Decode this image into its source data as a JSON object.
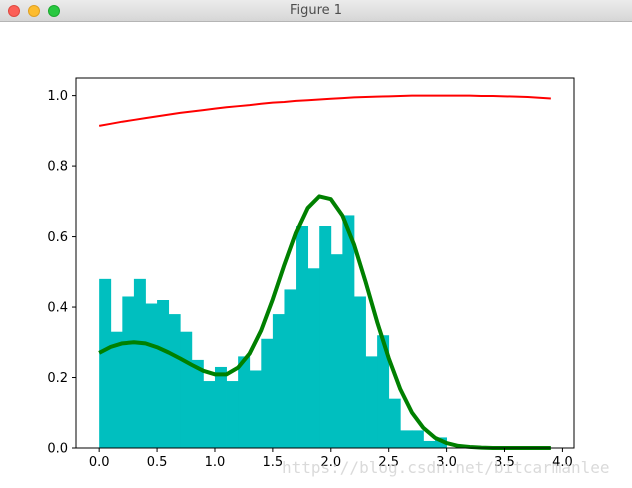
{
  "window": {
    "title": "Figure 1"
  },
  "watermark": "https://blog.csdn.net/bitcarmanlee",
  "colors": {
    "bars": "#00bfbf",
    "red_line": "#ff0000",
    "green_line": "#008000"
  },
  "chart_data": {
    "type": "bar",
    "title": "",
    "xlabel": "",
    "ylabel": "",
    "xlim": [
      -0.2,
      4.1
    ],
    "ylim": [
      0.0,
      1.05
    ],
    "grid": false,
    "x_ticks": [
      0.0,
      0.5,
      1.0,
      1.5,
      2.0,
      2.5,
      3.0,
      3.5,
      4.0
    ],
    "x_tick_labels": [
      "0.0",
      "0.5",
      "1.0",
      "1.5",
      "2.0",
      "2.5",
      "3.0",
      "3.5",
      "4.0"
    ],
    "y_ticks": [
      0.0,
      0.2,
      0.4,
      0.6,
      0.8,
      1.0
    ],
    "y_tick_labels": [
      "0.0",
      "0.2",
      "0.4",
      "0.6",
      "0.8",
      "1.0"
    ],
    "histogram": {
      "bin_width": 0.1,
      "bin_starts": [
        0.0,
        0.1,
        0.2,
        0.3,
        0.4,
        0.5,
        0.6,
        0.7,
        0.8,
        0.9,
        1.0,
        1.1,
        1.2,
        1.3,
        1.4,
        1.5,
        1.6,
        1.7,
        1.8,
        1.9,
        2.0,
        2.1,
        2.2,
        2.3,
        2.4,
        2.5,
        2.6,
        2.7,
        2.8,
        2.9
      ],
      "values": [
        0.48,
        0.33,
        0.43,
        0.48,
        0.41,
        0.42,
        0.38,
        0.33,
        0.25,
        0.19,
        0.23,
        0.19,
        0.26,
        0.22,
        0.31,
        0.38,
        0.45,
        0.63,
        0.51,
        0.63,
        0.55,
        0.66,
        0.43,
        0.26,
        0.32,
        0.14,
        0.05,
        0.05,
        0.02,
        0.03
      ]
    },
    "series": [
      {
        "kind": "line",
        "x": [
          0.0,
          0.1,
          0.2,
          0.3,
          0.4,
          0.5,
          0.6,
          0.7,
          0.8,
          0.9,
          1.0,
          1.1,
          1.2,
          1.3,
          1.4,
          1.5,
          1.6,
          1.7,
          1.8,
          1.9,
          2.0,
          2.1,
          2.2,
          2.3,
          2.4,
          2.5,
          2.6,
          2.7,
          2.8,
          2.9,
          3.0,
          3.1,
          3.2,
          3.3,
          3.4,
          3.5,
          3.6,
          3.7,
          3.8,
          3.9
        ],
        "y": [
          0.27,
          0.287,
          0.297,
          0.3,
          0.297,
          0.286,
          0.271,
          0.254,
          0.236,
          0.219,
          0.209,
          0.209,
          0.228,
          0.268,
          0.334,
          0.422,
          0.52,
          0.611,
          0.681,
          0.714,
          0.706,
          0.659,
          0.578,
          0.472,
          0.358,
          0.255,
          0.167,
          0.101,
          0.057,
          0.029,
          0.014,
          0.006,
          0.003,
          0.001,
          0.0,
          0.0,
          0.0,
          0.0,
          0.0,
          0.0
        ]
      },
      {
        "kind": "line",
        "x": [
          0.0,
          0.1,
          0.2,
          0.3,
          0.4,
          0.5,
          0.6,
          0.7,
          0.8,
          0.9,
          1.0,
          1.1,
          1.2,
          1.3,
          1.4,
          1.5,
          1.6,
          1.7,
          1.8,
          1.9,
          2.0,
          2.1,
          2.2,
          2.3,
          2.4,
          2.5,
          2.6,
          2.7,
          2.8,
          2.9,
          3.0,
          3.1,
          3.2,
          3.3,
          3.4,
          3.5,
          3.6,
          3.7,
          3.8,
          3.9
        ],
        "y": [
          0.914,
          0.92,
          0.926,
          0.931,
          0.936,
          0.941,
          0.946,
          0.951,
          0.955,
          0.959,
          0.963,
          0.967,
          0.97,
          0.973,
          0.977,
          0.98,
          0.982,
          0.985,
          0.987,
          0.989,
          0.991,
          0.993,
          0.995,
          0.996,
          0.997,
          0.998,
          0.999,
          1.0,
          1.0,
          1.0,
          1.0,
          1.0,
          1.0,
          0.999,
          0.999,
          0.998,
          0.997,
          0.996,
          0.994,
          0.992
        ]
      }
    ]
  }
}
